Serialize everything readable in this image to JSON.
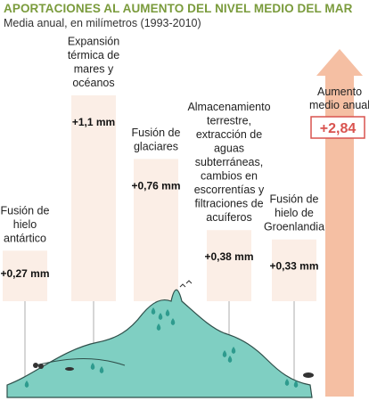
{
  "chart_data": {
    "type": "bar",
    "title": "APORTACIONES AL AUMENTO DEL NIVEL MEDIO DEL MAR",
    "subtitle": "Media anual, en milímetros (1993-2010)",
    "unit": "mm",
    "categories": [
      [
        "Fusión de",
        "hielo",
        "antártico"
      ],
      [
        "Expansión",
        "térmica de",
        "mares y",
        "océanos"
      ],
      [
        "Fusión de",
        "glaciares"
      ],
      [
        "Almacenamiento",
        "terrestre,",
        "extracción de",
        "aguas",
        "subterráneas,",
        "cambios en",
        "escorrentías y",
        "filtraciones de",
        "acuíferos"
      ],
      [
        "Fusión de",
        "hielo de",
        "Groenlandia"
      ]
    ],
    "values": [
      0.27,
      1.1,
      0.76,
      0.38,
      0.33
    ],
    "value_labels": [
      "+0,27 mm",
      "+1,1 mm",
      "+0,76 mm",
      "+0,38 mm",
      "+0,33 mm"
    ],
    "total": {
      "label": [
        "Aumento",
        "medio anual"
      ],
      "value": 2.84,
      "value_label": "+2,84"
    },
    "colors": {
      "title": "#7a9b3c",
      "bar": "#fbeee6",
      "arrow": "#f5bfa3",
      "total_box": "#d9534f",
      "landscape": "#7fcfc2",
      "landscape_line": "#2f4f4a",
      "drops": "#2e9b8e"
    }
  }
}
